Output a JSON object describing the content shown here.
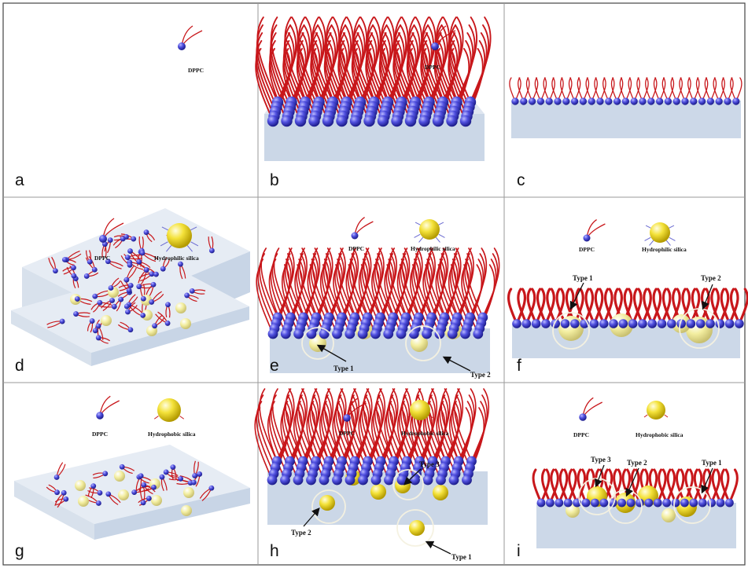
{
  "legend": {
    "dppc": "DPPC",
    "hydrophilic": "Hydrophilic silica",
    "hydrophobic": "Hydrophobic silica"
  },
  "panels": [
    {
      "letter": "a"
    },
    {
      "letter": "b"
    },
    {
      "letter": "c"
    },
    {
      "letter": "d"
    },
    {
      "letter": "e"
    },
    {
      "letter": "f"
    },
    {
      "letter": "g"
    },
    {
      "letter": "h"
    },
    {
      "letter": "i"
    }
  ],
  "types": {
    "type1": "Type 1",
    "type2": "Type 2",
    "type3": "Type 3"
  },
  "colors": {
    "head": "#4a4ad8",
    "tail": "#c8171b",
    "silica": "#f2df2c",
    "silica_pale": "#f4ef9a",
    "substrate_top": "#e3e9f2",
    "substrate_side": "#c9d6e6",
    "grid": "#9a9a9a"
  }
}
